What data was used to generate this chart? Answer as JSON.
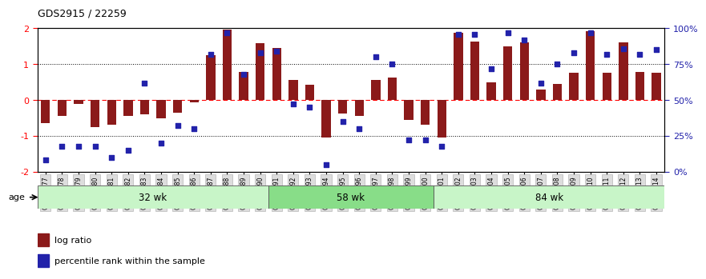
{
  "title": "GDS2915 / 22259",
  "samples": [
    "GSM97277",
    "GSM97278",
    "GSM97279",
    "GSM97280",
    "GSM97281",
    "GSM97282",
    "GSM97283",
    "GSM97284",
    "GSM97285",
    "GSM97286",
    "GSM97287",
    "GSM97288",
    "GSM97289",
    "GSM97290",
    "GSM97291",
    "GSM97292",
    "GSM97293",
    "GSM97294",
    "GSM97295",
    "GSM97296",
    "GSM97297",
    "GSM97298",
    "GSM97299",
    "GSM97300",
    "GSM97301",
    "GSM97302",
    "GSM97303",
    "GSM97304",
    "GSM97305",
    "GSM97306",
    "GSM97307",
    "GSM97308",
    "GSM97309",
    "GSM97310",
    "GSM97311",
    "GSM97312",
    "GSM97313",
    "GSM97314"
  ],
  "log_ratio": [
    -0.65,
    -0.45,
    -0.12,
    -0.75,
    -0.7,
    -0.44,
    -0.4,
    -0.5,
    -0.35,
    -0.07,
    1.25,
    1.97,
    0.78,
    1.58,
    1.45,
    0.55,
    0.42,
    -1.05,
    -0.38,
    -0.45,
    0.55,
    0.62,
    -0.55,
    -0.68,
    -1.05,
    1.88,
    1.62,
    0.5,
    1.5,
    1.6,
    0.3,
    0.45,
    0.75,
    1.92,
    0.75,
    1.6,
    0.78,
    0.75
  ],
  "percentile": [
    8,
    18,
    18,
    18,
    10,
    15,
    62,
    20,
    32,
    30,
    82,
    97,
    68,
    83,
    84,
    47,
    45,
    5,
    35,
    30,
    80,
    75,
    22,
    22,
    18,
    96,
    96,
    72,
    97,
    92,
    62,
    75,
    83,
    97,
    82,
    86,
    82,
    85
  ],
  "group_labels": [
    "32 wk",
    "58 wk",
    "84 wk"
  ],
  "group_starts": [
    0,
    14,
    24
  ],
  "group_ends": [
    14,
    24,
    38
  ],
  "group_colors": [
    "#c8f5c8",
    "#88dd88",
    "#c8f5c8"
  ],
  "bar_color": "#8B1A1A",
  "dot_color": "#2222AA",
  "ylim_left": [
    -2,
    2
  ],
  "ylim_right": [
    0,
    100
  ],
  "legend_bar": "log ratio",
  "legend_dot": "percentile rank within the sample",
  "background_color": "#ffffff",
  "tick_label_fontsize": 5.5,
  "group_label_fontsize": 8.5,
  "title_fontsize": 9
}
